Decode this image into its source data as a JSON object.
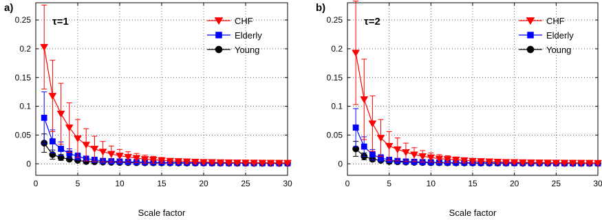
{
  "chart_data": [
    {
      "type": "line",
      "panel_label": "a)",
      "annotation": "τ=1",
      "xlabel": "Scale factor",
      "ylabel": "",
      "xlim": [
        0,
        30
      ],
      "ylim": [
        -0.02,
        0.28
      ],
      "xticks": [
        0,
        5,
        10,
        15,
        20,
        25,
        30
      ],
      "yticks": [
        0,
        0.05,
        0.1,
        0.15,
        0.2,
        0.25
      ],
      "ytick_labels": [
        "0",
        "0.05",
        "0.1",
        "0.15",
        "0.2",
        "0.25"
      ],
      "grid": true,
      "legend": "top-right",
      "x": [
        1,
        2,
        3,
        4,
        5,
        6,
        7,
        8,
        9,
        10,
        11,
        12,
        13,
        14,
        15,
        16,
        17,
        18,
        19,
        20,
        21,
        22,
        23,
        24,
        25,
        26,
        27,
        28,
        29,
        30
      ],
      "series": [
        {
          "name": "CHF",
          "color": "#ff0000",
          "marker": "triangle-down",
          "values": [
            0.203,
            0.118,
            0.087,
            0.063,
            0.044,
            0.033,
            0.026,
            0.021,
            0.017,
            0.014,
            0.012,
            0.01,
            0.008,
            0.007,
            0.006,
            0.005,
            0.0045,
            0.004,
            0.0035,
            0.003,
            0.0028,
            0.0025,
            0.0023,
            0.0021,
            0.002,
            0.0019,
            0.0018,
            0.0017,
            0.0016,
            0.0015
          ],
          "errors": [
            0.073,
            0.062,
            0.053,
            0.043,
            0.033,
            0.028,
            0.022,
            0.018,
            0.014,
            0.011,
            0.009,
            0.008,
            0.007,
            0.006,
            0.005,
            0.004,
            0.0035,
            0.003,
            0.003,
            0.0025,
            0.0022,
            0.002,
            0.002,
            0.0018,
            0.0017,
            0.0016,
            0.0015,
            0.0014,
            0.0013,
            0.0012
          ]
        },
        {
          "name": "Elderly",
          "color": "#0000ff",
          "marker": "square",
          "values": [
            0.08,
            0.039,
            0.026,
            0.018,
            0.013,
            0.009,
            0.007,
            0.005,
            0.0045,
            0.004,
            0.0035,
            0.003,
            0.0027,
            0.0024,
            0.0022,
            0.002,
            0.0019,
            0.0018,
            0.0017,
            0.0016,
            0.0015,
            0.0014,
            0.0013,
            0.0013,
            0.0012,
            0.0012,
            0.0011,
            0.0011,
            0.001,
            0.001
          ],
          "errors": [
            0.045,
            0.02,
            0.012,
            0.008,
            0.006,
            0.004,
            0.003,
            0.0025,
            0.002,
            0.002,
            0.0018,
            0.0015,
            0.0013,
            0.0012,
            0.0011,
            0.001,
            0.001,
            0.0009,
            0.0009,
            0.0008,
            0.0008,
            0.0007,
            0.0007,
            0.0007,
            0.0006,
            0.0006,
            0.0006,
            0.0006,
            0.0005,
            0.0005
          ]
        },
        {
          "name": "Young",
          "color": "#000000",
          "marker": "circle",
          "values": [
            0.036,
            0.016,
            0.011,
            0.008,
            0.006,
            0.004,
            0.0035,
            0.003,
            0.0027,
            0.0024,
            0.0022,
            0.002,
            0.0018,
            0.0017,
            0.0016,
            0.0015,
            0.0014,
            0.0013,
            0.0012,
            0.0012,
            0.0011,
            0.0011,
            0.001,
            0.001,
            0.001,
            0.0009,
            0.0009,
            0.0009,
            0.0008,
            0.0008
          ],
          "errors": [
            0.016,
            0.008,
            0.005,
            0.003,
            0.002,
            0.0015,
            0.0012,
            0.001,
            0.001,
            0.0009,
            0.0008,
            0.0008,
            0.0007,
            0.0007,
            0.0006,
            0.0006,
            0.0006,
            0.0005,
            0.0005,
            0.0005,
            0.0005,
            0.0004,
            0.0004,
            0.0004,
            0.0004,
            0.0004,
            0.0004,
            0.0004,
            0.0003,
            0.0003
          ]
        }
      ]
    },
    {
      "type": "line",
      "panel_label": "b)",
      "annotation": "τ=2",
      "xlabel": "Scale factor",
      "ylabel": "",
      "xlim": [
        0,
        30
      ],
      "ylim": [
        -0.02,
        0.28
      ],
      "xticks": [
        0,
        5,
        10,
        15,
        20,
        25,
        30
      ],
      "yticks": [
        0,
        0.05,
        0.1,
        0.15,
        0.2,
        0.25
      ],
      "ytick_labels": [
        "0",
        "0.05",
        "0.1",
        "0.15",
        "0.2",
        "0.25"
      ],
      "grid": true,
      "legend": "top-right",
      "x": [
        1,
        2,
        3,
        4,
        5,
        6,
        7,
        8,
        9,
        10,
        11,
        12,
        13,
        14,
        15,
        16,
        17,
        18,
        19,
        20,
        21,
        22,
        23,
        24,
        25,
        26,
        27,
        28,
        29,
        30
      ],
      "series": [
        {
          "name": "CHF",
          "color": "#ff0000",
          "marker": "triangle-down",
          "values": [
            0.193,
            0.112,
            0.07,
            0.045,
            0.031,
            0.025,
            0.02,
            0.016,
            0.013,
            0.011,
            0.009,
            0.008,
            0.007,
            0.006,
            0.005,
            0.0045,
            0.004,
            0.0035,
            0.003,
            0.0028,
            0.0025,
            0.0023,
            0.0021,
            0.002,
            0.0019,
            0.0018,
            0.0017,
            0.0016,
            0.0015,
            0.0014
          ],
          "errors": [
            0.09,
            0.07,
            0.048,
            0.032,
            0.025,
            0.02,
            0.016,
            0.012,
            0.01,
            0.008,
            0.007,
            0.006,
            0.005,
            0.0045,
            0.004,
            0.0035,
            0.003,
            0.003,
            0.0025,
            0.0022,
            0.002,
            0.002,
            0.0018,
            0.0017,
            0.0016,
            0.0015,
            0.0014,
            0.0013,
            0.0012,
            0.0012
          ]
        },
        {
          "name": "Elderly",
          "color": "#0000ff",
          "marker": "square",
          "values": [
            0.063,
            0.03,
            0.016,
            0.01,
            0.007,
            0.005,
            0.004,
            0.0035,
            0.003,
            0.0027,
            0.0024,
            0.0022,
            0.002,
            0.0019,
            0.0018,
            0.0017,
            0.0016,
            0.0015,
            0.0014,
            0.0013,
            0.0013,
            0.0012,
            0.0012,
            0.0011,
            0.0011,
            0.001,
            0.001,
            0.001,
            0.0009,
            0.0009
          ],
          "errors": [
            0.033,
            0.017,
            0.009,
            0.006,
            0.004,
            0.003,
            0.0025,
            0.002,
            0.0018,
            0.0016,
            0.0014,
            0.0012,
            0.0011,
            0.001,
            0.001,
            0.0009,
            0.0009,
            0.0008,
            0.0008,
            0.0007,
            0.0007,
            0.0007,
            0.0006,
            0.0006,
            0.0006,
            0.0006,
            0.0005,
            0.0005,
            0.0005,
            0.0005
          ]
        },
        {
          "name": "Young",
          "color": "#000000",
          "marker": "circle",
          "values": [
            0.026,
            0.013,
            0.008,
            0.006,
            0.004,
            0.0035,
            0.003,
            0.0026,
            0.0023,
            0.002,
            0.0019,
            0.0017,
            0.0016,
            0.0015,
            0.0014,
            0.0013,
            0.0012,
            0.0012,
            0.0011,
            0.0011,
            0.001,
            0.001,
            0.001,
            0.0009,
            0.0009,
            0.0009,
            0.0008,
            0.0008,
            0.0008,
            0.0008
          ],
          "errors": [
            0.013,
            0.006,
            0.004,
            0.003,
            0.002,
            0.0015,
            0.0012,
            0.001,
            0.001,
            0.0009,
            0.0008,
            0.0008,
            0.0007,
            0.0007,
            0.0006,
            0.0006,
            0.0006,
            0.0005,
            0.0005,
            0.0005,
            0.0005,
            0.0004,
            0.0004,
            0.0004,
            0.0004,
            0.0004,
            0.0004,
            0.0004,
            0.0003,
            0.0003
          ]
        }
      ]
    }
  ]
}
